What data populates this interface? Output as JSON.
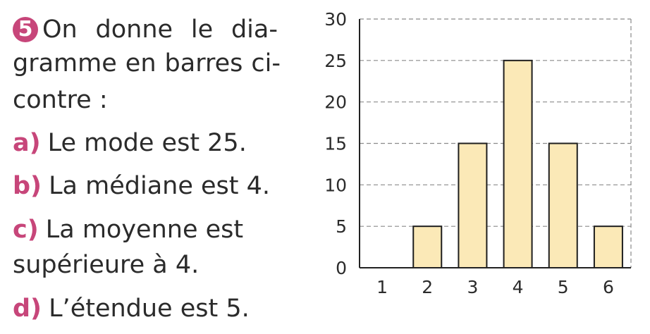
{
  "exercise": {
    "number": "5",
    "intro_lines": [
      [
        "On",
        "donne",
        "le",
        "dia-"
      ],
      [
        "gramme",
        "en",
        "barres",
        "ci-"
      ],
      [
        "contre :"
      ]
    ],
    "items": [
      {
        "letter": "a)",
        "text": "Le mode est 25."
      },
      {
        "letter": "b)",
        "text": "La médiane est 4."
      },
      {
        "letter": "c)",
        "text": "La moyenne est"
      },
      {
        "letter": "d)",
        "text": "L’étendue est 5."
      }
    ],
    "item_c_continuation": "supérieure à 4."
  },
  "colors": {
    "accent": "#c7467a",
    "bar_fill": "#fbe9b7",
    "bar_stroke": "#1e1e1e",
    "grid": "#8a8a8a",
    "text": "#2b2b2b"
  },
  "chart_data": {
    "type": "bar",
    "categories": [
      "1",
      "2",
      "3",
      "4",
      "5",
      "6"
    ],
    "values": [
      0,
      5,
      15,
      25,
      15,
      5
    ],
    "title": "",
    "xlabel": "",
    "ylabel": "",
    "ylim": [
      0,
      30
    ],
    "yticks": [
      0,
      5,
      10,
      15,
      20,
      25,
      30
    ],
    "grid": "horizontal dashed"
  }
}
